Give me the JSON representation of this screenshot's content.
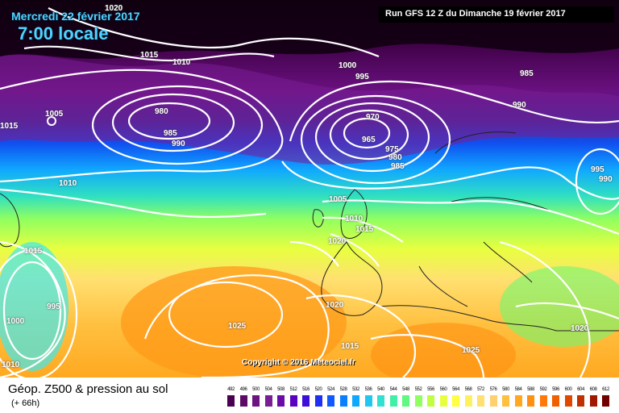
{
  "header": {
    "date": "Mercredi 22 février 2017",
    "time": "7:00 locale",
    "run": "Run GFS 12 Z du Dimanche 19 février 2017"
  },
  "copyright": "Copyright © 2016 Meteociel.fr",
  "footer": {
    "title": "Géop. Z500 & pression au sol",
    "subtitle": "(+ 66h)"
  },
  "pressure_labels": [
    {
      "text": "1020",
      "id": "p1"
    },
    {
      "text": "1015",
      "id": "p2"
    },
    {
      "text": "1010",
      "id": "p3"
    },
    {
      "text": "1005",
      "id": "p4"
    },
    {
      "text": "980",
      "id": "p5"
    },
    {
      "text": "985",
      "id": "p6"
    },
    {
      "text": "990",
      "id": "p7"
    },
    {
      "text": "1000",
      "id": "p8"
    },
    {
      "text": "995",
      "id": "p9"
    },
    {
      "text": "985",
      "id": "p10"
    },
    {
      "text": "990",
      "id": "p11"
    },
    {
      "text": "970",
      "id": "p12"
    },
    {
      "text": "965",
      "id": "p13"
    },
    {
      "text": "975",
      "id": "p14"
    },
    {
      "text": "980",
      "id": "p15"
    },
    {
      "text": "985",
      "id": "p16"
    },
    {
      "text": "995",
      "id": "p17"
    },
    {
      "text": "990",
      "id": "p18"
    },
    {
      "text": "1010",
      "id": "p19"
    },
    {
      "text": "1005",
      "id": "p20"
    },
    {
      "text": "1010",
      "id": "p21"
    },
    {
      "text": "1015",
      "id": "p22"
    },
    {
      "text": "1020",
      "id": "p23"
    },
    {
      "text": "1015",
      "id": "p24"
    },
    {
      "text": "995",
      "id": "p25"
    },
    {
      "text": "1000",
      "id": "p26"
    },
    {
      "text": "1025",
      "id": "p27"
    },
    {
      "text": "1020",
      "id": "p28"
    },
    {
      "text": "1015",
      "id": "p29"
    },
    {
      "text": "1025",
      "id": "p30"
    },
    {
      "text": "1020",
      "id": "p31"
    },
    {
      "text": "1010",
      "id": "p32"
    },
    {
      "text": "1015",
      "id": "p33"
    }
  ],
  "legend": {
    "values": [
      "492",
      "496",
      "500",
      "504",
      "508",
      "512",
      "516",
      "520",
      "524",
      "528",
      "532",
      "536",
      "540",
      "544",
      "548",
      "552",
      "556",
      "560",
      "564",
      "568",
      "572",
      "576",
      "580",
      "584",
      "588",
      "592",
      "596",
      "600",
      "604",
      "608",
      "612"
    ],
    "colors": [
      "#4a0050",
      "#5c0a66",
      "#6e1480",
      "#7a1e96",
      "#6a0aa8",
      "#5a00c0",
      "#3c10d8",
      "#1e30f0",
      "#1058ff",
      "#0a80ff",
      "#10a8ff",
      "#20c8f0",
      "#30e0d0",
      "#40f0a8",
      "#60f880",
      "#90ff60",
      "#c0ff40",
      "#e8ff40",
      "#ffff40",
      "#fff060",
      "#ffe070",
      "#ffd070",
      "#ffc040",
      "#ffa820",
      "#ff9010",
      "#ff7808",
      "#f06000",
      "#e04800",
      "#c03000",
      "#a01800",
      "#700000"
    ]
  }
}
